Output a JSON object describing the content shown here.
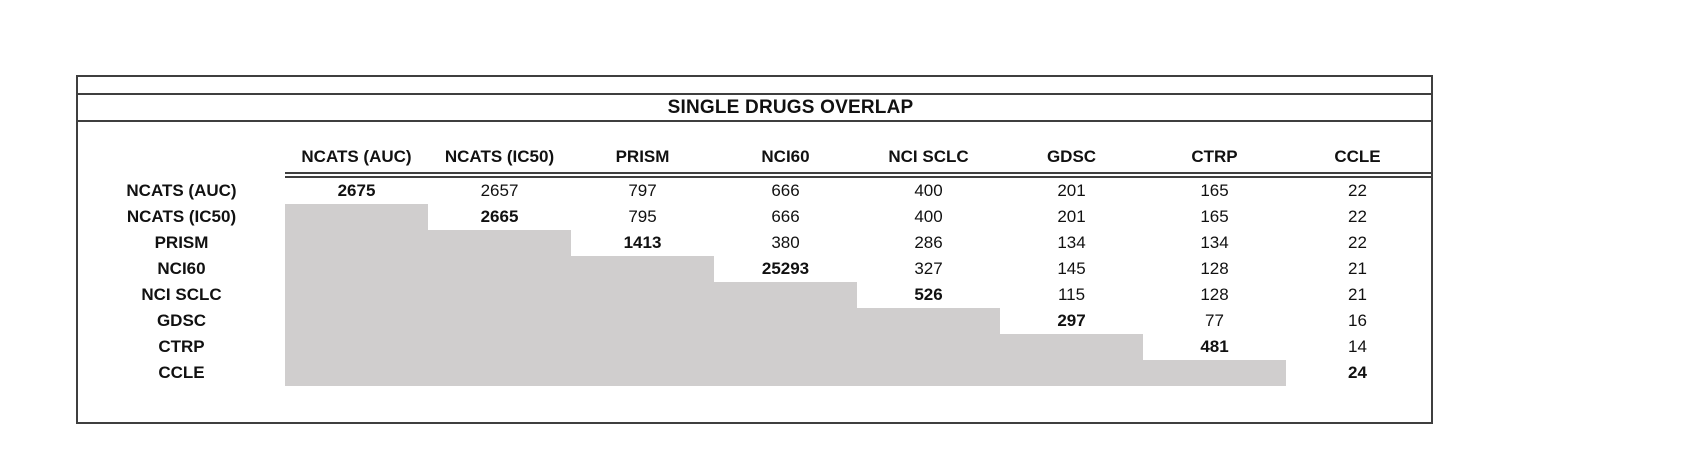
{
  "chart_data": {
    "type": "table",
    "title": "SINGLE DRUGS OVERLAP",
    "columns": [
      "NCATS (AUC)",
      "NCATS (IC50)",
      "PRISM",
      "NCI60",
      "NCI SCLC",
      "GDSC",
      "CTRP",
      "CCLE"
    ],
    "rows": [
      {
        "label": "NCATS (AUC)",
        "values": [
          2675,
          2657,
          797,
          666,
          400,
          201,
          165,
          22
        ]
      },
      {
        "label": "NCATS (IC50)",
        "values": [
          null,
          2665,
          795,
          666,
          400,
          201,
          165,
          22
        ]
      },
      {
        "label": "PRISM",
        "values": [
          null,
          null,
          1413,
          380,
          286,
          134,
          134,
          22
        ]
      },
      {
        "label": "NCI60",
        "values": [
          null,
          null,
          null,
          25293,
          327,
          145,
          128,
          21
        ]
      },
      {
        "label": "NCI SCLC",
        "values": [
          null,
          null,
          null,
          null,
          526,
          115,
          128,
          21
        ]
      },
      {
        "label": "GDSC",
        "values": [
          null,
          null,
          null,
          null,
          null,
          297,
          77,
          16
        ]
      },
      {
        "label": "CTRP",
        "values": [
          null,
          null,
          null,
          null,
          null,
          null,
          481,
          14
        ]
      },
      {
        "label": "CCLE",
        "values": [
          null,
          null,
          null,
          null,
          null,
          null,
          null,
          24
        ]
      }
    ],
    "layout": {
      "diagonal_bold": true,
      "lower_triangle_fill": "#d0cece",
      "border_color": "#3f3f3f",
      "grid": false,
      "legend_position": "none"
    }
  }
}
